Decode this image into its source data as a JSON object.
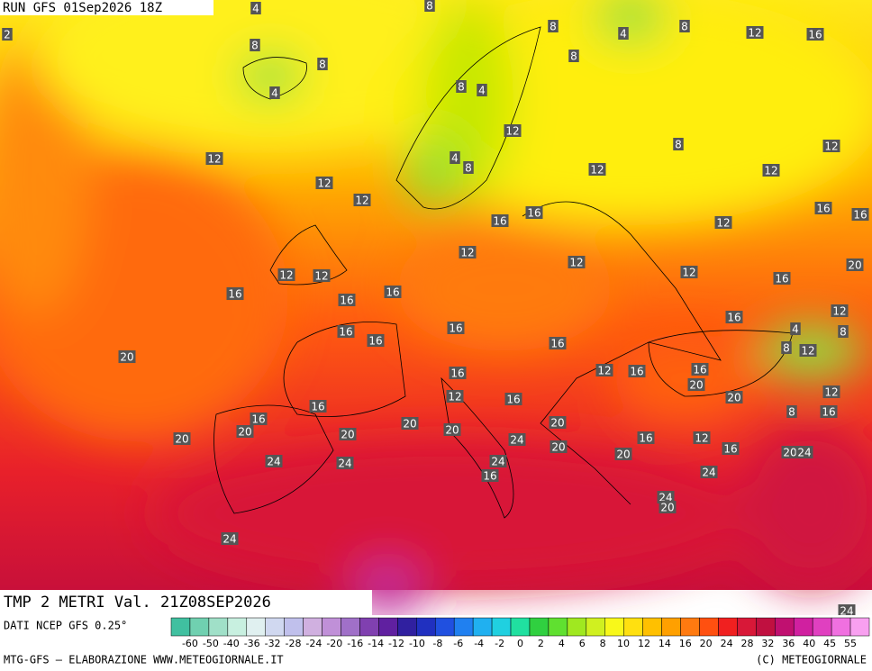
{
  "header": {
    "run": "RUN GFS 01Sep2026 18Z"
  },
  "title": "TMP 2 METRI Val. 21Z08SEP2026",
  "source": "DATI NCEP GFS 0.25°",
  "credit_left": "MTG-GFS — ELABORAZIONE WWW.METEOGIORNALE.IT",
  "credit_right": "(C) METEOGIORNALE",
  "legend": {
    "labels": [
      "-60",
      "-50",
      "-40",
      "-36",
      "-32",
      "-28",
      "-24",
      "-20",
      "-16",
      "-14",
      "-12",
      "-10",
      "-8",
      "-6",
      "-4",
      "-2",
      "0",
      "2",
      "4",
      "6",
      "8",
      "10",
      "12",
      "14",
      "16",
      "20",
      "24",
      "28",
      "32",
      "36",
      "40",
      "45",
      "55"
    ]
  },
  "map_labels": [
    "4",
    "8",
    "2",
    "8",
    "4",
    "8",
    "12",
    "16",
    "8",
    "8",
    "8",
    "4",
    "8",
    "4",
    "12",
    "8",
    "12",
    "12",
    "4",
    "8",
    "12",
    "12",
    "12",
    "12",
    "16",
    "16",
    "12",
    "16",
    "16",
    "12",
    "12",
    "20",
    "12",
    "12",
    "12",
    "16",
    "16",
    "16",
    "16",
    "12",
    "16",
    "16",
    "16",
    "4",
    "8",
    "16",
    "16",
    "12",
    "8",
    "20",
    "16",
    "12",
    "16",
    "16",
    "20",
    "12",
    "16",
    "20",
    "12",
    "16",
    "8",
    "16",
    "16",
    "20",
    "20",
    "20",
    "20",
    "20",
    "20",
    "24",
    "16",
    "12",
    "20",
    "16",
    "20",
    "24",
    "20",
    "24",
    "24",
    "24",
    "24",
    "16",
    "24",
    "20",
    "24",
    "24",
    "24"
  ]
}
